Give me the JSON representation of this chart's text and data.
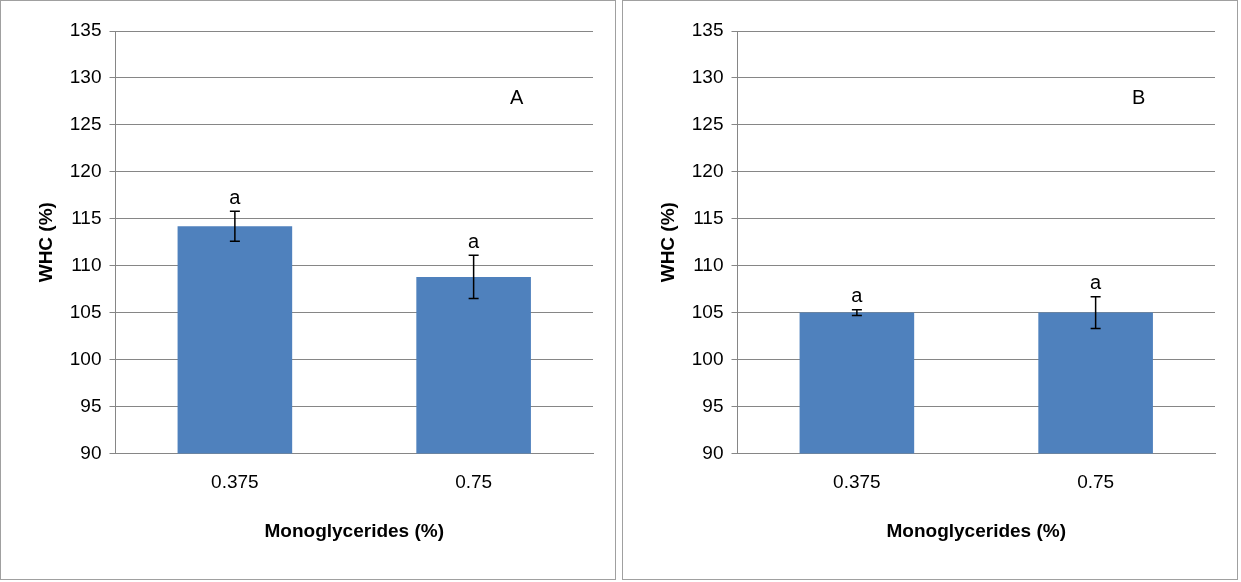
{
  "chart_data": [
    {
      "type": "bar",
      "categories": [
        "0.375",
        "0.75"
      ],
      "values": [
        114.2,
        108.8
      ],
      "errors": [
        1.6,
        2.3
      ],
      "color": "#4f81bd",
      "xlabel": "Monoglycerides (%)",
      "ylabel": "WHC (%)",
      "ylim": [
        90,
        135
      ],
      "yticks": [
        90,
        95,
        100,
        105,
        110,
        115,
        120,
        125,
        130,
        135
      ],
      "grid": "y",
      "legend": false,
      "annotations": [
        "A",
        {
          "text": "a",
          "x": "0.375",
          "y": 115.8
        },
        {
          "text": "a",
          "x": "0.75",
          "y": 111.1
        }
      ]
    },
    {
      "type": "bar",
      "categories": [
        "0.375",
        "0.75"
      ],
      "values": [
        105.0,
        105.0
      ],
      "errors": [
        0.3,
        1.7
      ],
      "color": "#4f81bd",
      "xlabel": "Monoglycerides (%)",
      "ylabel": "WHC (%)",
      "ylim": [
        90,
        135
      ],
      "yticks": [
        90,
        95,
        100,
        105,
        110,
        115,
        120,
        125,
        130,
        135
      ],
      "grid": "y",
      "legend": false,
      "annotations": [
        "B",
        {
          "text": "a",
          "x": "0.375",
          "y": 105.3
        },
        {
          "text": "a",
          "x": "0.75",
          "y": 106.7
        }
      ]
    }
  ]
}
